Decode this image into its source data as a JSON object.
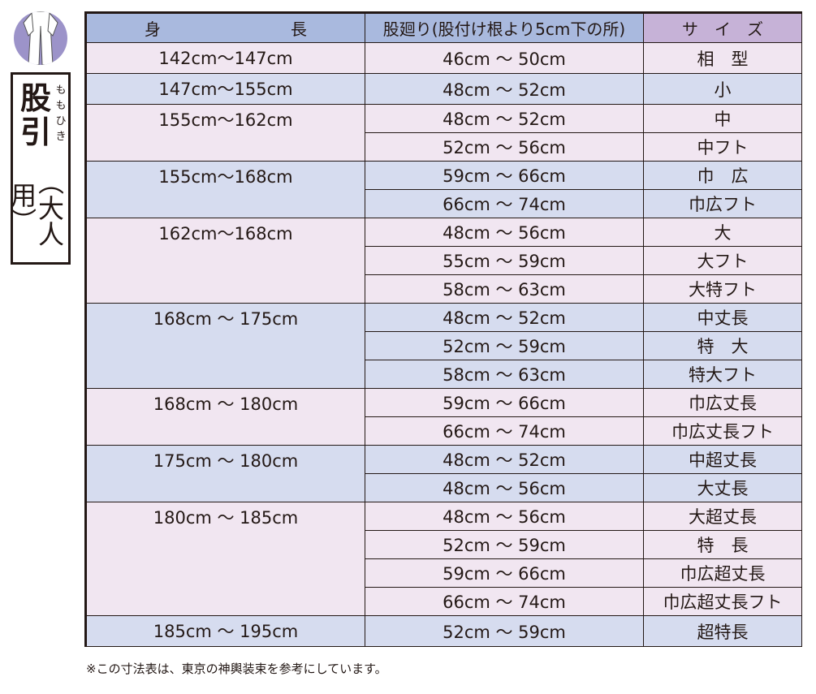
{
  "title": {
    "main": "股引",
    "ruby": "ももひき",
    "sub": "（大人用）"
  },
  "colors": {
    "header": "#a9b9de",
    "size_header": "#c6b2d7",
    "pink_row": "#f1e6f1",
    "blue_row": "#d6dcef",
    "emblem": "#9c93c9"
  },
  "table": {
    "headers": [
      "身　　　　　　　　長",
      "股廻り(股付け根より5cm下の所)",
      "サ　イ　ズ"
    ],
    "groups": [
      {
        "height": "142cm～147cm",
        "color": "pink",
        "rows": [
          [
            "46cm ～ 50cm",
            "相　型"
          ]
        ]
      },
      {
        "height": "147cm～155cm",
        "color": "blue",
        "rows": [
          [
            "48cm ～ 52cm",
            "小"
          ]
        ]
      },
      {
        "height": "155cm～162cm",
        "color": "pink",
        "rows": [
          [
            "48cm ～ 52cm",
            "中"
          ],
          [
            "52cm ～ 56cm",
            "中フト"
          ]
        ]
      },
      {
        "height": "155cm～168cm",
        "color": "blue",
        "rows": [
          [
            "59cm ～ 66cm",
            "巾　広"
          ],
          [
            "66cm ～ 74cm",
            "巾広フト"
          ]
        ]
      },
      {
        "height": "162cm～168cm",
        "color": "pink",
        "rows": [
          [
            "48cm ～ 56cm",
            "大"
          ],
          [
            "55cm ～ 59cm",
            "大フト"
          ],
          [
            "58cm ～ 63cm",
            "大特フト"
          ]
        ]
      },
      {
        "height": "168cm ～ 175cm",
        "color": "blue",
        "rows": [
          [
            "48cm ～ 52cm",
            "中丈長"
          ],
          [
            "52cm ～ 59cm",
            "特　大"
          ],
          [
            "58cm ～ 63cm",
            "特大フト"
          ]
        ]
      },
      {
        "height": "168cm ～ 180cm",
        "color": "pink",
        "rows": [
          [
            "59cm ～ 66cm",
            "巾広丈長"
          ],
          [
            "66cm ～ 74cm",
            "巾広丈長フト"
          ]
        ]
      },
      {
        "height": "175cm ～ 180cm",
        "color": "blue",
        "rows": [
          [
            "48cm ～ 52cm",
            "中超丈長"
          ],
          [
            "48cm ～ 56cm",
            "大丈長"
          ]
        ]
      },
      {
        "height": "180cm ～ 185cm",
        "color": "pink",
        "rows": [
          [
            "48cm ～ 56cm",
            "大超丈長"
          ],
          [
            "52cm ～ 59cm",
            "特　長"
          ],
          [
            "59cm ～ 66cm",
            "巾広超丈長"
          ],
          [
            "66cm ～ 74cm",
            "巾広超丈長フト"
          ]
        ]
      },
      {
        "height": "185cm ～ 195cm",
        "color": "blue",
        "rows": [
          [
            "52cm ～ 59cm",
            "超特長"
          ]
        ]
      }
    ]
  },
  "note": "※この寸法表は、東京の神輿装束を参考にしています。"
}
